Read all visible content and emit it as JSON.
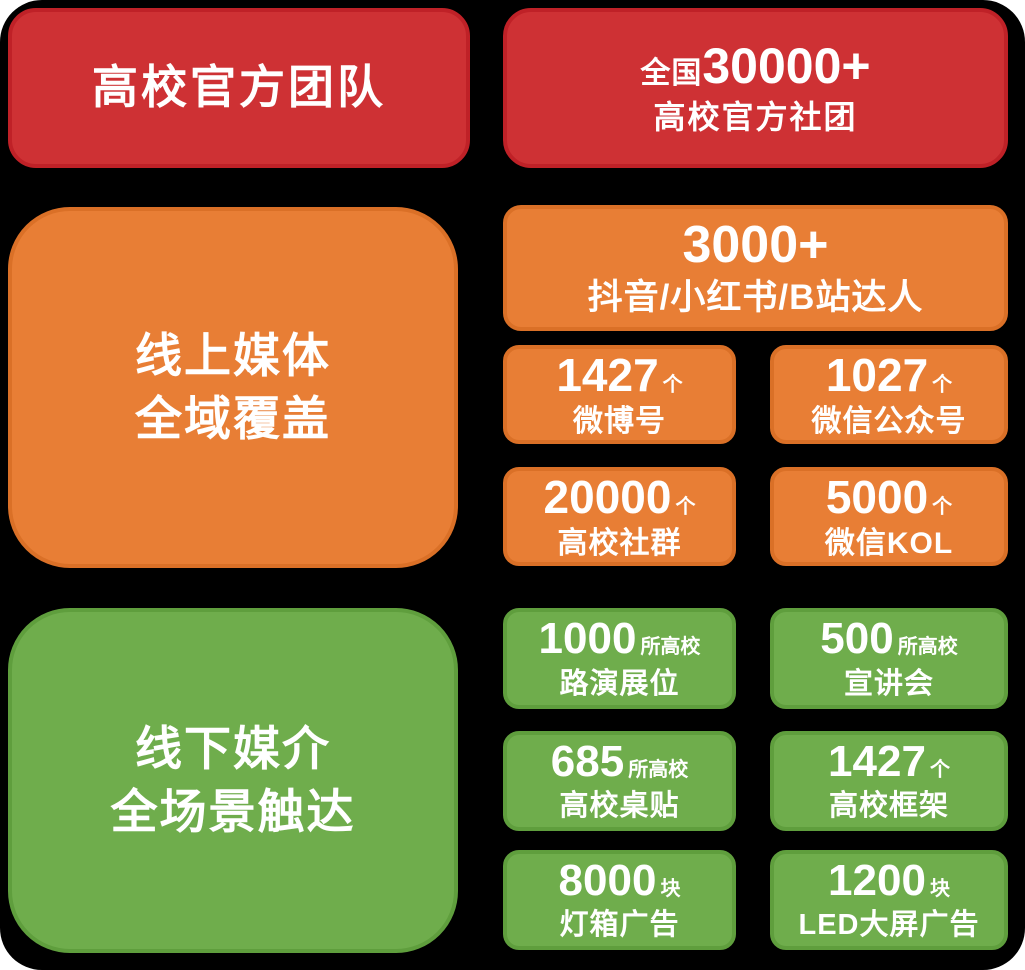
{
  "page": {
    "background_color": "#ffffff",
    "backdrop_color": "#000000"
  },
  "colors": {
    "red": "#ce3134",
    "red_border": "#bf2127",
    "orange": "#e87e35",
    "orange_border": "#da7027",
    "green": "#6fad4c",
    "green_border": "#5f9e3d",
    "text": "#ffffff"
  },
  "sections": {
    "universities": {
      "title": "高校官方团队",
      "stat_prefix": "全国",
      "stat_value": "30000+",
      "stat_label": "高校官方社团"
    },
    "online": {
      "title_line1": "线上媒体",
      "title_line2": "全域覆盖",
      "hero": {
        "value": "3000+",
        "label": "抖音/小红书/B站达人"
      },
      "stats": [
        {
          "value": "1427",
          "unit": "个",
          "label": "微博号"
        },
        {
          "value": "1027",
          "unit": "个",
          "label": "微信公众号"
        },
        {
          "value": "20000",
          "unit": "个",
          "label": "高校社群"
        },
        {
          "value": "5000",
          "unit": "个",
          "label": "微信KOL"
        }
      ]
    },
    "offline": {
      "title_line1": "线下媒介",
      "title_line2": "全场景触达",
      "stats": [
        {
          "value": "1000",
          "unit": "所高校",
          "label": "路演展位"
        },
        {
          "value": "500",
          "unit": "所高校",
          "label": "宣讲会"
        },
        {
          "value": "685",
          "unit": "所高校",
          "label": "高校桌贴"
        },
        {
          "value": "1427",
          "unit": "个",
          "label": "高校框架"
        },
        {
          "value": "8000",
          "unit": "块",
          "label": "灯箱广告"
        },
        {
          "value": "1200",
          "unit": "块",
          "label": "LED大屏广告"
        }
      ]
    }
  }
}
